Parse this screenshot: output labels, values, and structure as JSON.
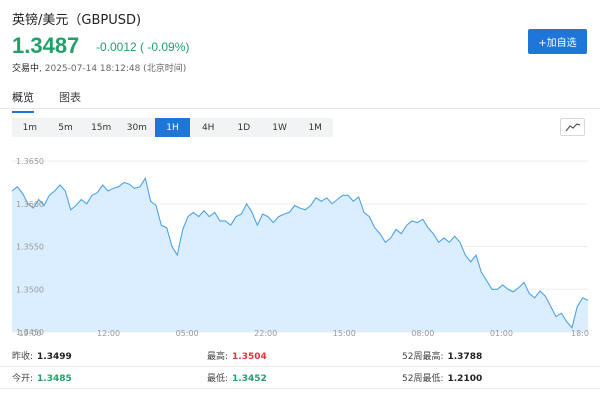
{
  "header": {
    "title": "英镑/美元（GBPUSD)",
    "price": "1.3487",
    "change": "-0.0012 ( -0.09%)",
    "status": "交易中",
    "datetime": ", 2025-07-14 18:12:48 (北京时间)",
    "add_button": "+加自选"
  },
  "tabs": [
    {
      "label": "概览",
      "active": true
    },
    {
      "label": "图表",
      "active": false
    }
  ],
  "intervals": [
    {
      "label": "1m"
    },
    {
      "label": "5m"
    },
    {
      "label": "15m"
    },
    {
      "label": "30m"
    },
    {
      "label": "1H",
      "active": true
    },
    {
      "label": "4H"
    },
    {
      "label": "1D"
    },
    {
      "label": "1W"
    },
    {
      "label": "1M"
    }
  ],
  "chart_type_icon": "line-chart-icon",
  "chart_data": {
    "type": "area",
    "y_ticks": [
      "1.3650",
      "1.3600",
      "1.3550",
      "1.3500",
      "1.3450"
    ],
    "x_ticks": [
      "19:00",
      "12:00",
      "05:00",
      "22:00",
      "15:00",
      "08:00",
      "01:00",
      "18:0"
    ],
    "ylim": [
      1.345,
      1.367
    ],
    "series": [
      {
        "values": [
          1.3615,
          1.362,
          1.3612,
          1.36,
          1.3595,
          1.3605,
          1.3598,
          1.361,
          1.3615,
          1.3622,
          1.3615,
          1.3593,
          1.3598,
          1.3605,
          1.36,
          1.361,
          1.3613,
          1.3622,
          1.3615,
          1.3618,
          1.362,
          1.3625,
          1.3623,
          1.3618,
          1.362,
          1.363,
          1.3603,
          1.3598,
          1.3575,
          1.3572,
          1.355,
          1.354,
          1.357,
          1.3585,
          1.359,
          1.3585,
          1.3592,
          1.3585,
          1.359,
          1.358,
          1.358,
          1.3575,
          1.3585,
          1.3588,
          1.36,
          1.359,
          1.3575,
          1.3588,
          1.3585,
          1.3578,
          1.3585,
          1.3588,
          1.359,
          1.3598,
          1.3595,
          1.3593,
          1.3598,
          1.3607,
          1.3603,
          1.3607,
          1.36,
          1.3605,
          1.361,
          1.361,
          1.3603,
          1.3608,
          1.359,
          1.3585,
          1.3572,
          1.3565,
          1.3555,
          1.356,
          1.357,
          1.3565,
          1.3575,
          1.358,
          1.3578,
          1.3582,
          1.3572,
          1.3565,
          1.3555,
          1.356,
          1.3555,
          1.3562,
          1.3555,
          1.354,
          1.3532,
          1.354,
          1.352,
          1.351,
          1.35,
          1.35,
          1.3505,
          1.35,
          1.3497,
          1.3502,
          1.3508,
          1.3495,
          1.349,
          1.3498,
          1.3492,
          1.348,
          1.3468,
          1.3472,
          1.3462,
          1.3455,
          1.348,
          1.349,
          1.3487
        ]
      }
    ],
    "line_color": "#4da3e6",
    "fill_color": "#dbeeff"
  },
  "stats": {
    "row1": [
      {
        "label": "昨收:",
        "value": "1.3499",
        "tone": "neutral"
      },
      {
        "label": "最高:",
        "value": "1.3504",
        "tone": "up"
      },
      {
        "label": "52周最高:",
        "value": "1.3788",
        "tone": "neutral"
      }
    ],
    "row2": [
      {
        "label": "今开:",
        "value": "1.3485",
        "tone": "down"
      },
      {
        "label": "最低:",
        "value": "1.3452",
        "tone": "down"
      },
      {
        "label": "52周最低:",
        "value": "1.2100",
        "tone": "neutral"
      }
    ]
  },
  "colors": {
    "accent": "#1f75d8",
    "down": "#22a06b",
    "up": "#e0353b"
  }
}
